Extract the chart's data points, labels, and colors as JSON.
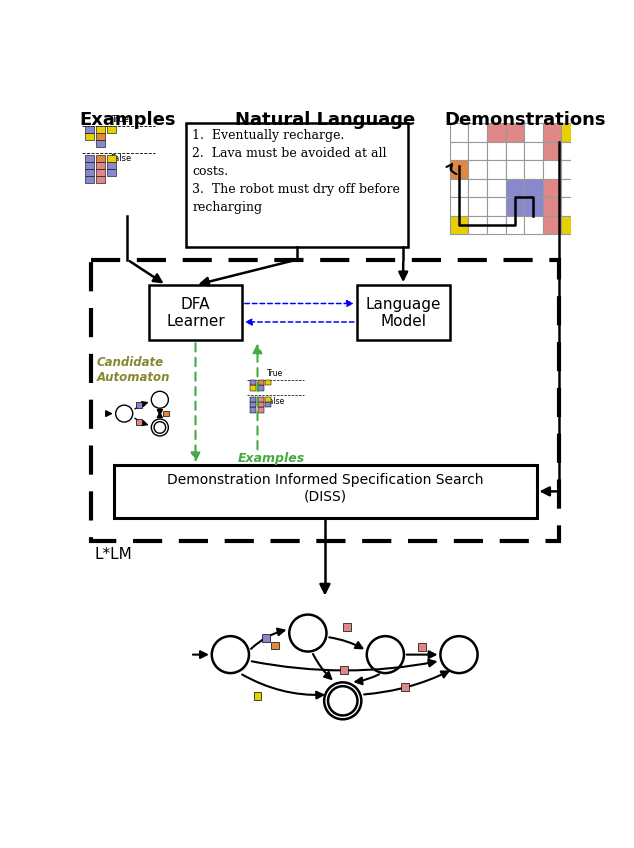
{
  "examples_title": "Examples",
  "demonstrations_title": "Demonstrations",
  "nl_title": "Natural Language",
  "nl_text": "1.  Eventually recharge.\n2.  Lava must be avoided at all\ncosts.\n3.  The robot must dry off before\nrecharging",
  "dfa_label": "DFA\nLearner",
  "lm_label": "Language\nModel",
  "diss_label": "Demonstration Informed Specification Search\n(DISS)",
  "lstar_label": "L*LM",
  "candidate_label": "Candidate\nAutomaton",
  "examples_label2": "Examples",
  "colors": {
    "blue": "#8888cc",
    "pink": "#e08888",
    "yellow": "#e8d000",
    "orange": "#e08840",
    "green_sq": "#88cc88",
    "white": "#ffffff",
    "black": "#000000",
    "grid_gray": "#999999",
    "green_dashed": "#44aa44"
  }
}
